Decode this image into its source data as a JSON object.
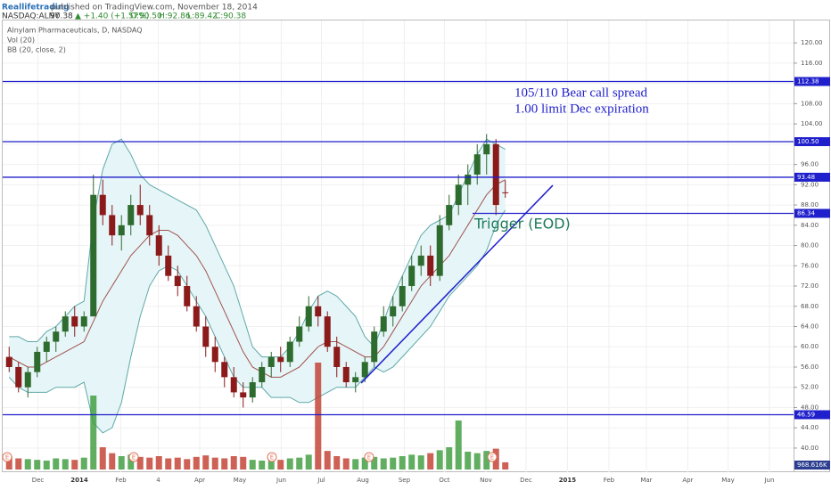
{
  "header": {
    "author": "Reallifetrading",
    "published": "published on TradingView.com, November 18, 2014",
    "symbol": "NASDAQ:ALNY",
    "last": "90.38",
    "change": "▲ +1.40 (+1.57%)",
    "ohlc": [
      "O:90.50",
      "H:92.86",
      "L:89.42",
      "C:90.38"
    ]
  },
  "chart_data": {
    "type": "candlestick",
    "legend": [
      "Alnylam Pharmaceuticals, D, NASDAQ",
      "Vol (20)",
      "BB (20, close, 2)"
    ],
    "up_color": "#2e6b2e",
    "down_color": "#8b1a1a",
    "grid": true,
    "xlim": [
      0,
      84.29
    ],
    "xticks": [
      {
        "value": 3.57,
        "label": "Dec"
      },
      {
        "value": 8,
        "label": "2014"
      },
      {
        "value": 12.43,
        "label": "Feb"
      },
      {
        "value": 16.43,
        "label": "4"
      },
      {
        "value": 20.86,
        "label": "Apr"
      },
      {
        "value": 25.14,
        "label": "May"
      },
      {
        "value": 29.57,
        "label": "Jun"
      },
      {
        "value": 33.86,
        "label": "Jul"
      },
      {
        "value": 38.29,
        "label": "Aug"
      },
      {
        "value": 42.71,
        "label": "Sep"
      },
      {
        "value": 47,
        "label": "Oct"
      },
      {
        "value": 51.43,
        "label": "Nov"
      },
      {
        "value": 55.71,
        "label": "Dec"
      },
      {
        "value": 60.14,
        "label": "2015"
      },
      {
        "value": 64.57,
        "label": "Feb"
      },
      {
        "value": 68.57,
        "label": "Mar"
      },
      {
        "value": 73,
        "label": "Apr"
      },
      {
        "value": 77.29,
        "label": "May"
      },
      {
        "value": 81.71,
        "label": "Jun"
      }
    ],
    "ylim": [
      37,
      124.6
    ],
    "yticks": [
      {
        "value": 40,
        "label": "40.00"
      },
      {
        "value": 44,
        "label": "44.00"
      },
      {
        "value": 48,
        "label": "48.00"
      },
      {
        "value": 52,
        "label": "52.00"
      },
      {
        "value": 56,
        "label": "56.00"
      },
      {
        "value": 60,
        "label": "60.00"
      },
      {
        "value": 64,
        "label": "64.00"
      },
      {
        "value": 68,
        "label": "68.00"
      },
      {
        "value": 72,
        "label": "72.00"
      },
      {
        "value": 76,
        "label": "76.00"
      },
      {
        "value": 80,
        "label": "80.00"
      },
      {
        "value": 84,
        "label": "84.00"
      },
      {
        "value": 88,
        "label": "88.00"
      },
      {
        "value": 92,
        "label": "92.00"
      },
      {
        "value": 96,
        "label": "96.00"
      },
      {
        "value": 100,
        "label": "100.00"
      },
      {
        "value": 104,
        "label": "104.00"
      },
      {
        "value": 108,
        "label": "108.00"
      },
      {
        "value": 112,
        "label": "112.00"
      },
      {
        "value": 116,
        "label": "116.00"
      },
      {
        "value": 120,
        "label": "120.00"
      }
    ],
    "ohlc": [
      [
        58,
        60,
        55,
        56
      ],
      [
        56,
        57,
        51,
        52
      ],
      [
        52,
        56,
        50,
        55
      ],
      [
        55,
        60,
        54,
        59
      ],
      [
        59,
        62,
        57,
        61
      ],
      [
        61,
        64,
        59,
        63
      ],
      [
        63,
        67,
        62,
        66
      ],
      [
        66,
        68,
        62,
        64
      ],
      [
        64,
        67,
        63,
        66
      ],
      [
        66,
        94,
        66,
        90
      ],
      [
        90,
        93,
        84,
        86
      ],
      [
        86,
        88,
        80,
        82
      ],
      [
        82,
        86,
        79,
        84
      ],
      [
        84,
        90,
        82,
        88
      ],
      [
        88,
        92,
        84,
        86
      ],
      [
        86,
        88,
        80,
        82
      ],
      [
        82,
        84,
        76,
        78
      ],
      [
        78,
        80,
        73,
        74
      ],
      [
        74,
        76,
        70,
        72
      ],
      [
        72,
        74,
        67,
        68
      ],
      [
        68,
        70,
        63,
        64
      ],
      [
        64,
        66,
        58,
        60
      ],
      [
        60,
        62,
        55,
        57
      ],
      [
        57,
        58,
        52,
        54
      ],
      [
        54,
        56,
        50,
        51
      ],
      [
        51,
        53,
        48,
        50
      ],
      [
        50,
        54,
        49,
        53
      ],
      [
        53,
        57,
        52,
        56
      ],
      [
        56,
        59,
        54,
        58
      ],
      [
        58,
        60,
        55,
        57
      ],
      [
        57,
        62,
        56,
        61
      ],
      [
        61,
        66,
        60,
        64
      ],
      [
        64,
        70,
        63,
        68
      ],
      [
        68,
        70,
        64,
        66
      ],
      [
        66,
        67,
        59,
        60
      ],
      [
        60,
        62,
        54,
        56
      ],
      [
        56,
        57,
        52,
        53
      ],
      [
        53,
        55,
        51,
        54
      ],
      [
        54,
        58,
        53,
        57
      ],
      [
        57,
        64,
        56,
        63
      ],
      [
        63,
        68,
        62,
        66
      ],
      [
        66,
        70,
        64,
        68
      ],
      [
        68,
        74,
        67,
        72
      ],
      [
        72,
        78,
        71,
        76
      ],
      [
        76,
        80,
        74,
        78
      ],
      [
        78,
        80,
        72,
        74
      ],
      [
        74,
        86,
        73,
        84
      ],
      [
        84,
        90,
        83,
        88
      ],
      [
        88,
        94,
        86,
        92
      ],
      [
        92,
        96,
        88,
        94
      ],
      [
        94,
        100,
        92,
        98
      ],
      [
        98,
        102,
        94,
        100
      ],
      [
        100,
        101,
        86,
        88
      ],
      [
        90.5,
        92.86,
        89.42,
        90.38
      ]
    ],
    "bb_upper": [
      62,
      62,
      61,
      61,
      63,
      64,
      66,
      68,
      69,
      85,
      95,
      100,
      101,
      98,
      94,
      92,
      91,
      90,
      89,
      88,
      87,
      84,
      80,
      76,
      72,
      66,
      60,
      58,
      58,
      58,
      60,
      63,
      67,
      70,
      71,
      70,
      68,
      66,
      62,
      60,
      65,
      70,
      74,
      78,
      82,
      84,
      85,
      86,
      90,
      94,
      98,
      101,
      100,
      99
    ],
    "bb_basis": [
      58,
      57,
      56,
      56,
      57,
      58,
      59,
      60,
      61,
      65,
      69,
      72,
      75,
      78,
      80,
      82,
      83,
      83,
      82,
      80,
      78,
      75,
      71,
      67,
      63,
      59,
      56,
      55,
      54,
      54,
      55,
      56,
      58,
      60,
      61,
      61,
      60,
      59,
      58,
      58,
      60,
      63,
      66,
      69,
      72,
      74,
      76,
      78,
      81,
      84,
      87,
      90,
      92,
      93
    ],
    "bb_lower": [
      54,
      52,
      51,
      51,
      51,
      52,
      52,
      52,
      53,
      45,
      43,
      44,
      49,
      58,
      66,
      72,
      75,
      76,
      75,
      72,
      69,
      66,
      62,
      58,
      54,
      52,
      52,
      52,
      50,
      50,
      50,
      49,
      49,
      50,
      51,
      52,
      52,
      52,
      54,
      56,
      55,
      56,
      58,
      60,
      62,
      64,
      67,
      70,
      72,
      74,
      76,
      79,
      84,
      87
    ],
    "volume": [
      1800,
      1500,
      1400,
      1300,
      1200,
      1500,
      1400,
      1300,
      1600,
      9960,
      3000,
      2200,
      1800,
      2000,
      1700,
      1600,
      1800,
      1500,
      1600,
      1400,
      1700,
      1900,
      1600,
      1500,
      1800,
      1700,
      1300,
      1200,
      1400,
      1300,
      1500,
      1600,
      2000,
      14400,
      2500,
      1800,
      1500,
      1400,
      1600,
      1700,
      1500,
      1600,
      1800,
      2000,
      1900,
      2200,
      2600,
      3000,
      6600,
      2400,
      2200,
      2500,
      2800,
      968.616
    ],
    "volume_labels": {
      "53": "968.616K"
    },
    "vlim": [
      0,
      15000
    ],
    "earnings": [
      {
        "x": 0.29,
        "label": "E"
      },
      {
        "x": 13.81,
        "label": "E"
      },
      {
        "x": 28.57,
        "label": "E"
      },
      {
        "x": 38.95,
        "label": "E"
      },
      {
        "x": 52.1,
        "label": "E"
      }
    ],
    "hlines": [
      {
        "value": 112.38,
        "label": "112.38"
      },
      {
        "value": 100.5,
        "label": "100.50"
      },
      {
        "value": 93.48,
        "label": "93.48"
      },
      {
        "value": 86.34,
        "label": "86.34",
        "from": 50
      },
      {
        "value": 46.59,
        "label": "46.59"
      }
    ],
    "trendline": {
      "x": [
        38.1,
        58.57
      ],
      "y": [
        52.84,
        91.87
      ]
    },
    "annotations": [
      "105/110 Bear call spread",
      "1.00 limit Dec expiration",
      "Trigger (EOD)"
    ]
  }
}
